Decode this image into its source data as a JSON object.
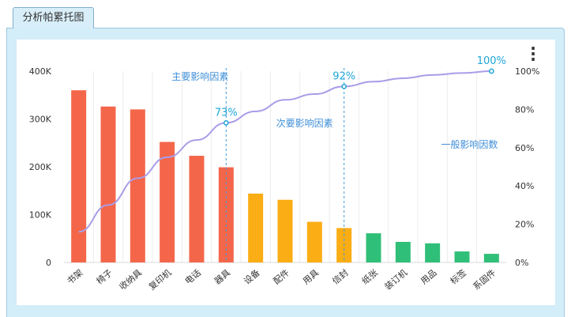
{
  "tab": {
    "label": "分析帕累托图"
  },
  "chart_data": {
    "type": "bar",
    "categories": [
      "书架",
      "椅子",
      "收纳具",
      "复印机",
      "电话",
      "器具",
      "设备",
      "配件",
      "用具",
      "信封",
      "纸张",
      "装订机",
      "用品",
      "标签",
      "系固件"
    ],
    "values": [
      360000,
      326000,
      320000,
      252000,
      223000,
      199000,
      144000,
      131000,
      85000,
      72000,
      61000,
      43000,
      40000,
      23000,
      18000
    ],
    "bar_colors": [
      "#f4664a",
      "#f4664a",
      "#f4664a",
      "#f4664a",
      "#f4664a",
      "#f4664a",
      "#faad14",
      "#faad14",
      "#faad14",
      "#faad14",
      "#30bf78",
      "#30bf78",
      "#30bf78",
      "#30bf78",
      "#30bf78"
    ],
    "cumulative_percent": [
      16,
      30,
      44,
      55,
      64,
      73,
      79,
      85,
      88,
      92,
      94.5,
      96.3,
      98,
      99,
      100
    ],
    "line_color": "#a99de8",
    "marker_color": "#1ea6d6",
    "ylim": [
      0,
      400000
    ],
    "y_ticks": [
      0,
      100000,
      200000,
      300000,
      400000
    ],
    "y_tick_labels": [
      "0",
      "100K",
      "200K",
      "300K",
      "400K"
    ],
    "y2lim": [
      0,
      100
    ],
    "y2_ticks": [
      0,
      20,
      40,
      60,
      80,
      100
    ],
    "y2_tick_labels": [
      "0%",
      "20%",
      "40%",
      "60%",
      "80%",
      "100%"
    ],
    "grid": true,
    "point_labels": [
      {
        "index": 5,
        "text": "73%"
      },
      {
        "index": 9,
        "text": "92%"
      },
      {
        "index": 14,
        "text": "100%"
      }
    ],
    "regions": [
      {
        "text": "主要影响因素",
        "anchor_index": 5,
        "color": "#3f8fd8"
      },
      {
        "text": "次要影响因素",
        "anchor_index": 9,
        "color": "#3f8fd8"
      },
      {
        "text": "一般影响因数",
        "anchor_index": 14,
        "color": "#3f8fd8"
      }
    ]
  }
}
